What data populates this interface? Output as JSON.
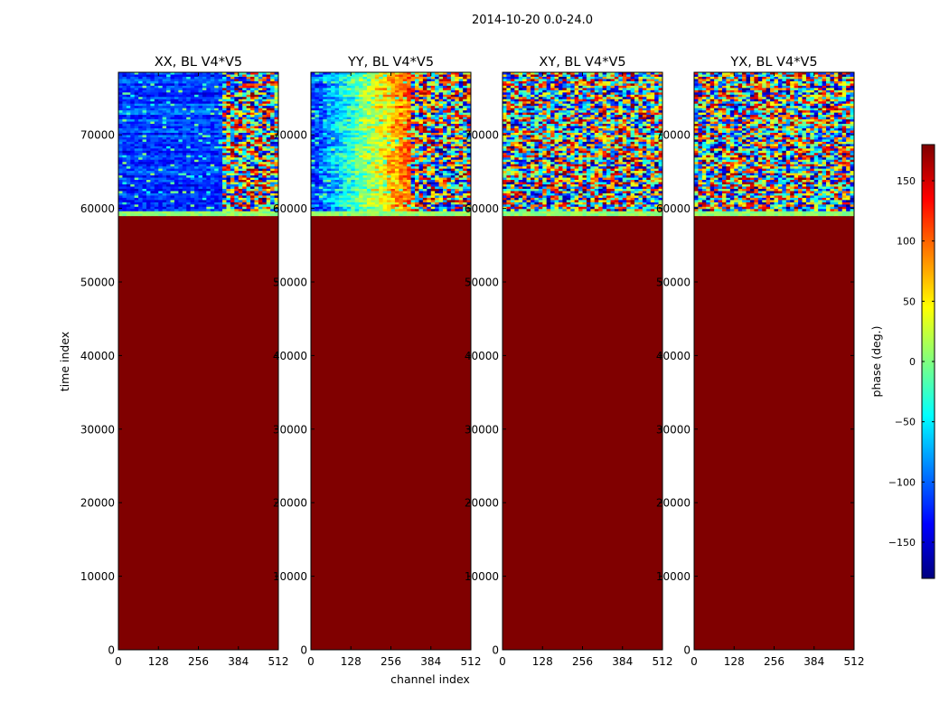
{
  "chart_data": {
    "type": "heatmap",
    "suptitle": "2014-10-20 0.0-24.0",
    "xlabel": "channel index",
    "ylabel": "time index",
    "xlim": [
      0,
      512
    ],
    "ylim": [
      0,
      78500
    ],
    "xticks": [
      0,
      128,
      256,
      384,
      512
    ],
    "yticks": [
      0,
      10000,
      20000,
      30000,
      40000,
      50000,
      60000,
      70000
    ],
    "flagged_phase_value": 180,
    "data_start_time_index": 59000,
    "colorbar": {
      "label": "phase (deg.)",
      "range": [
        -180,
        180
      ],
      "ticks": [
        -150,
        -100,
        -50,
        0,
        50,
        100,
        150
      ],
      "colormap": "jet",
      "colors": [
        "#00007f",
        "#0000ff",
        "#007fff",
        "#00ffff",
        "#7fff7f",
        "#ffff00",
        "#ff7f00",
        "#ff0000",
        "#7f0000"
      ]
    },
    "panels": [
      {
        "title": "XX, BL V4*V5",
        "data_pattern": "coherent",
        "coherent_channel_edge": 330
      },
      {
        "title": "YY, BL V4*V5",
        "data_pattern": "coherent",
        "coherent_channel_edge": 320
      },
      {
        "title": "XY, BL V4*V5",
        "data_pattern": "noise"
      },
      {
        "title": "YX, BL V4*V5",
        "data_pattern": "noise"
      }
    ]
  }
}
